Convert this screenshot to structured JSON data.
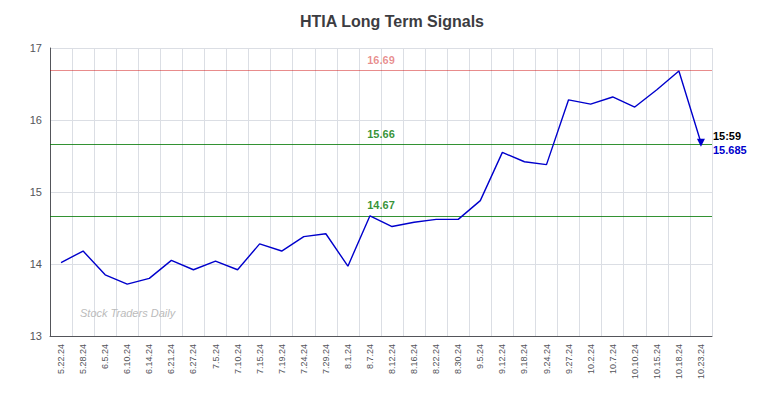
{
  "chart_data": {
    "type": "line",
    "title": "HTIA Long Term Signals",
    "categories": [
      "5.22.24",
      "5.28.24",
      "6.5.24",
      "6.10.24",
      "6.14.24",
      "6.21.24",
      "6.27.24",
      "7.5.24",
      "7.10.24",
      "7.15.24",
      "7.19.24",
      "7.24.24",
      "7.29.24",
      "8.1.24",
      "8.7.24",
      "8.12.24",
      "8.16.24",
      "8.22.24",
      "8.30.24",
      "9.5.24",
      "9.12.24",
      "9.18.24",
      "9.24.24",
      "9.27.24",
      "10.2.24",
      "10.7.24",
      "10.10.24",
      "10.15.24",
      "10.18.24",
      "10.23.24"
    ],
    "values": [
      14.02,
      14.18,
      13.85,
      13.72,
      13.8,
      14.05,
      13.92,
      14.04,
      13.92,
      14.28,
      14.18,
      14.38,
      14.42,
      13.97,
      14.67,
      14.52,
      14.58,
      14.62,
      14.62,
      14.88,
      15.55,
      15.42,
      15.38,
      16.28,
      16.22,
      16.32,
      16.18,
      16.42,
      16.68,
      15.685
    ],
    "color": "#0000cc",
    "ylim": [
      13,
      17
    ],
    "yticks": [
      13,
      14,
      15,
      16,
      17
    ],
    "grid": true,
    "hlines": [
      {
        "value": 16.69,
        "label": "16.69",
        "color": "#cc0000"
      },
      {
        "value": 15.66,
        "label": "15.66",
        "color": "#007700"
      },
      {
        "value": 14.67,
        "label": "14.67",
        "color": "#007700"
      }
    ],
    "annotations": [
      {
        "text": "15:59",
        "color": "#000000"
      },
      {
        "text": "15.685",
        "color": "#0000cc"
      }
    ],
    "watermark": {
      "text": "Stock Traders Daily",
      "color": "#bbbbbb"
    }
  }
}
